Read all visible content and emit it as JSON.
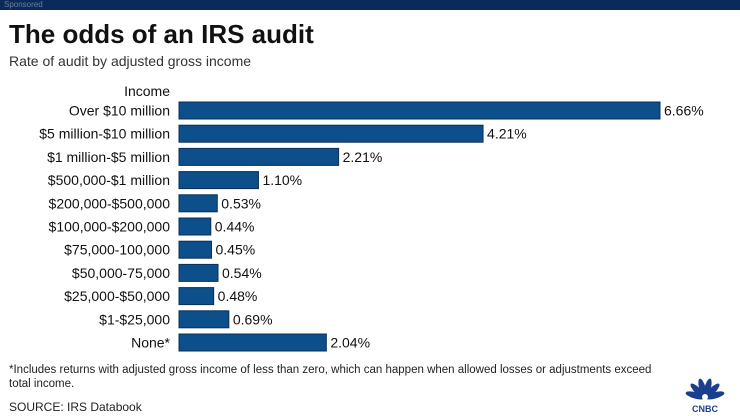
{
  "header": {
    "top_label": "Sponsored",
    "title": "The odds of an IRS audit",
    "subtitle": "Rate of audit by adjusted gross income"
  },
  "chart_data": {
    "type": "bar",
    "orientation": "horizontal",
    "title": "The odds of an IRS audit",
    "subtitle": "Rate of audit by adjusted gross income",
    "category_axis_label": "Income",
    "categories": [
      "Over $10 million",
      "$5 million-$10 million",
      "$1 million-$5 million",
      "$500,000-$1 million",
      "$200,000-$500,000",
      "$100,000-$200,000",
      "$75,000-100,000",
      "$50,000-75,000",
      "$25,000-$50,000",
      "$1-$25,000",
      "None*"
    ],
    "values": [
      6.66,
      4.21,
      2.21,
      1.1,
      0.53,
      0.44,
      0.45,
      0.54,
      0.48,
      0.69,
      2.04
    ],
    "value_labels": [
      "6.66%",
      "4.21%",
      "2.21%",
      "1.10%",
      "0.53%",
      "0.44%",
      "0.45%",
      "0.54%",
      "0.48%",
      "0.69%",
      "2.04%"
    ],
    "unit": "%",
    "xlim": [
      0,
      6.66
    ],
    "grid": false,
    "legend": "none",
    "bar_color": "#0d4f8b"
  },
  "footer": {
    "footnote": "*Includes returns with adjusted gross income of less than zero, which can happen when allowed losses or adjustments exceed total income.",
    "source": "SOURCE: IRS Databook",
    "logo_name": "CNBC"
  },
  "colors": {
    "top_bar": "#0a2a5c",
    "bar": "#0d4f8b",
    "bar_outline": "#0a2f57"
  }
}
